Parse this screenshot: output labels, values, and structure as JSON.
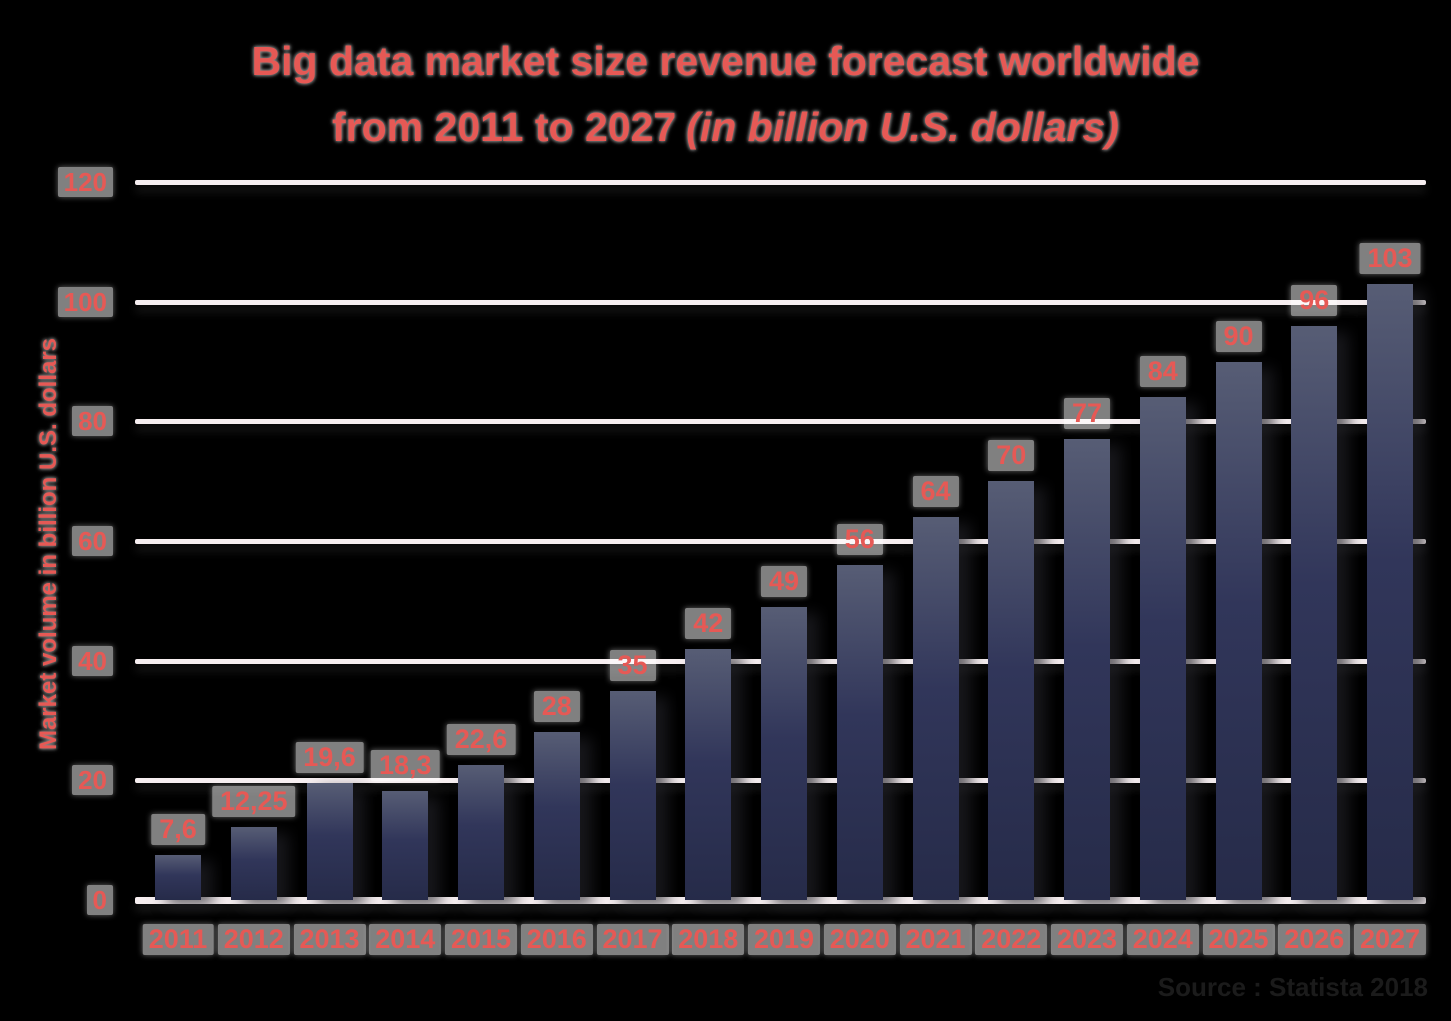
{
  "page": {
    "background": "#000000"
  },
  "title": {
    "line1": "Big data market size revenue forecast worldwide",
    "line2_text": "from 2011 to 2027",
    "line2_italic": "(in billion U.S. dollars)",
    "color": "#e65955"
  },
  "source_note": {
    "text": "Source : Statista 2018",
    "color": "#1b1b1b"
  },
  "chart_data": {
    "type": "bar",
    "title": "Big data market size revenue forecast worldwide from 2011 to 2027 (in billion U.S. dollars)",
    "categories": [
      "2011",
      "2012",
      "2013",
      "2014",
      "2015",
      "2016",
      "2017",
      "2018",
      "2019",
      "2020",
      "2021",
      "2022",
      "2023",
      "2024",
      "2025",
      "2026",
      "2027"
    ],
    "values": [
      7.6,
      12.25,
      19.6,
      18.3,
      22.6,
      28,
      35,
      42,
      49,
      56,
      64,
      70,
      77,
      84,
      90,
      96,
      103
    ],
    "value_labels": [
      "7,6",
      "12,25",
      "19,6",
      "18,3",
      "22,6",
      "28",
      "35",
      "42",
      "49",
      "56",
      "64",
      "70",
      "77",
      "84",
      "90",
      "96",
      "103"
    ],
    "xlabel": "",
    "ylabel": "Market volume in billion U.S. dollars",
    "ylim": [
      0,
      120
    ],
    "yticks": [
      0,
      20,
      40,
      60,
      80,
      100,
      120
    ],
    "grid": true,
    "legend": false,
    "colors": {
      "label": "#e65955",
      "label_halo": "#8f8f8f",
      "gridline": "#f6eef0",
      "bar_gradient_top": "#575d75",
      "bar_gradient_mid": "#31365a",
      "bar_gradient_bottom": "#262b49"
    }
  }
}
